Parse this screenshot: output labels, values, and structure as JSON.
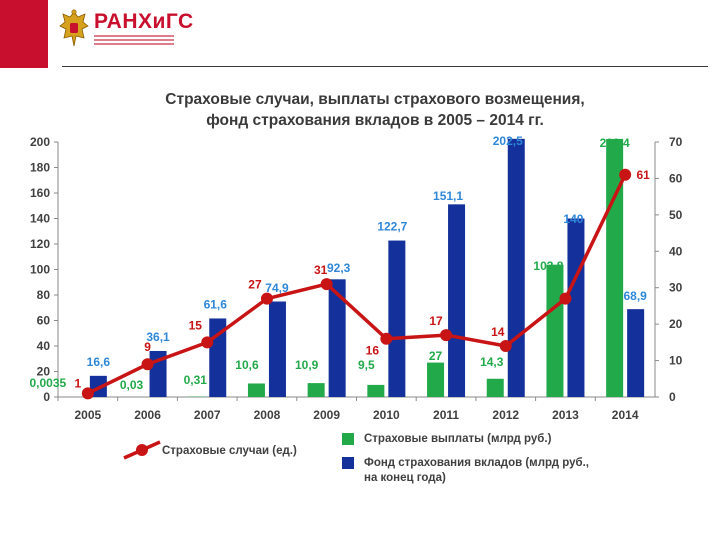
{
  "header": {
    "logo_text": "РАНХиГС",
    "logo_emblem_icon": "double-headed-eagle-icon",
    "accent_color": "#c8102e"
  },
  "chart_data": {
    "type": "bar+line",
    "title_line1": "Страховые случаи, выплаты страхового возмещения,",
    "title_line2": "фонд страхования вкладов в 2005 – 2014 гг.",
    "categories": [
      "2005",
      "2006",
      "2007",
      "2008",
      "2009",
      "2010",
      "2011",
      "2012",
      "2013",
      "2014"
    ],
    "y_left": {
      "lim": [
        0,
        200
      ],
      "ticks": [
        "0",
        "20",
        "40",
        "60",
        "80",
        "100",
        "120",
        "140",
        "160",
        "180",
        "200"
      ]
    },
    "y_right": {
      "lim": [
        0,
        70
      ],
      "ticks": [
        "0",
        "10",
        "20",
        "30",
        "40",
        "50",
        "60",
        "70"
      ]
    },
    "grid": false,
    "series": [
      {
        "name": "Страховые выплаты (млрд руб.)",
        "kind": "bar",
        "axis": "left",
        "color": "#22a94a",
        "values": [
          0.0035,
          0.03,
          0.31,
          10.6,
          10.9,
          9.5,
          27,
          14.3,
          103.8,
          202.4
        ],
        "labels": [
          "0,0035",
          "0,03",
          "0,31",
          "10,6",
          "10,9",
          "9,5",
          "27",
          "14,3",
          "103,8",
          "202,4"
        ]
      },
      {
        "name": "Фонд страхования вкладов (млрд руб., на конец года)",
        "kind": "bar",
        "axis": "left",
        "color": "#14309a",
        "label_color": "#2f87d8",
        "values": [
          16.6,
          36.1,
          61.6,
          74.9,
          92.3,
          122.7,
          151.1,
          202.5,
          140,
          68.9
        ],
        "labels": [
          "16,6",
          "36,1",
          "61,6",
          "74,9",
          "92,3",
          "122,7",
          "151,1",
          "202,5",
          "140",
          "68,9"
        ]
      },
      {
        "name": "Страховые случаи (ед.)",
        "kind": "line",
        "axis": "right",
        "color": "#c81414",
        "values": [
          1,
          9,
          15,
          27,
          31,
          16,
          17,
          14,
          27,
          61
        ],
        "labels": [
          "1",
          "9",
          "15",
          "27",
          "31",
          "16",
          "17",
          "14",
          "",
          "61"
        ]
      }
    ],
    "legend": [
      {
        "label": "Страховые случаи (ед.)",
        "kind": "line"
      },
      {
        "label": "Страховые выплаты (млрд руб.)",
        "kind": "bar"
      },
      {
        "label_line1": "Фонд страхования вкладов (млрд руб.,",
        "label_line2": "на конец года)",
        "kind": "bar"
      }
    ],
    "legend_position": "bottom"
  }
}
